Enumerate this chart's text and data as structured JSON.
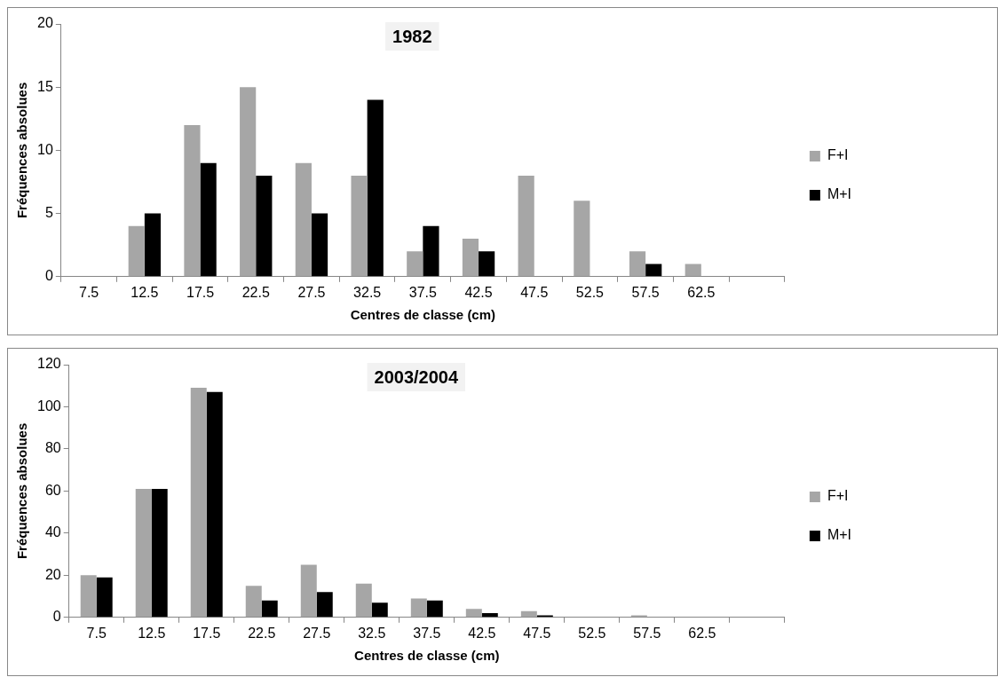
{
  "chart_data": [
    {
      "type": "bar",
      "title": "1982",
      "xlabel": "Centres de classe (cm)",
      "ylabel": "Fréquences absolues",
      "categories": [
        "7.5",
        "12.5",
        "17.5",
        "22.5",
        "27.5",
        "32.5",
        "37.5",
        "42.5",
        "47.5",
        "52.5",
        "57.5",
        "62.5",
        null
      ],
      "series": [
        {
          "name": "F+I",
          "color": "#a6a6a6",
          "values": [
            0,
            4,
            12,
            15,
            9,
            8,
            2,
            3,
            8,
            6,
            2,
            1,
            null
          ]
        },
        {
          "name": "M+I",
          "color": "#000000",
          "values": [
            0,
            5,
            9,
            8,
            5,
            14,
            4,
            2,
            0,
            0,
            1,
            0,
            null
          ]
        }
      ],
      "ylim": [
        0,
        20
      ],
      "yticks": [
        0,
        5,
        10,
        15,
        20
      ],
      "grid": false,
      "legend": "right"
    },
    {
      "type": "bar",
      "title": "2003/2004",
      "xlabel": "Centres de classe (cm)",
      "ylabel": "Fréquences absolues",
      "categories": [
        "7.5",
        "12.5",
        "17.5",
        "22.5",
        "27.5",
        "32.5",
        "37.5",
        "42.5",
        "47.5",
        "52.5",
        "57.5",
        "62.5",
        null
      ],
      "series": [
        {
          "name": "F+I",
          "color": "#a6a6a6",
          "values": [
            20,
            61,
            109,
            15,
            25,
            16,
            9,
            4,
            3,
            0,
            1,
            0,
            null
          ]
        },
        {
          "name": "M+I",
          "color": "#000000",
          "values": [
            19,
            61,
            107,
            8,
            12,
            7,
            8,
            2,
            1,
            0,
            0,
            0,
            null
          ]
        }
      ],
      "ylim": [
        0,
        120
      ],
      "yticks": [
        0,
        20,
        40,
        60,
        80,
        100,
        120
      ],
      "grid": false,
      "legend": "right"
    }
  ]
}
